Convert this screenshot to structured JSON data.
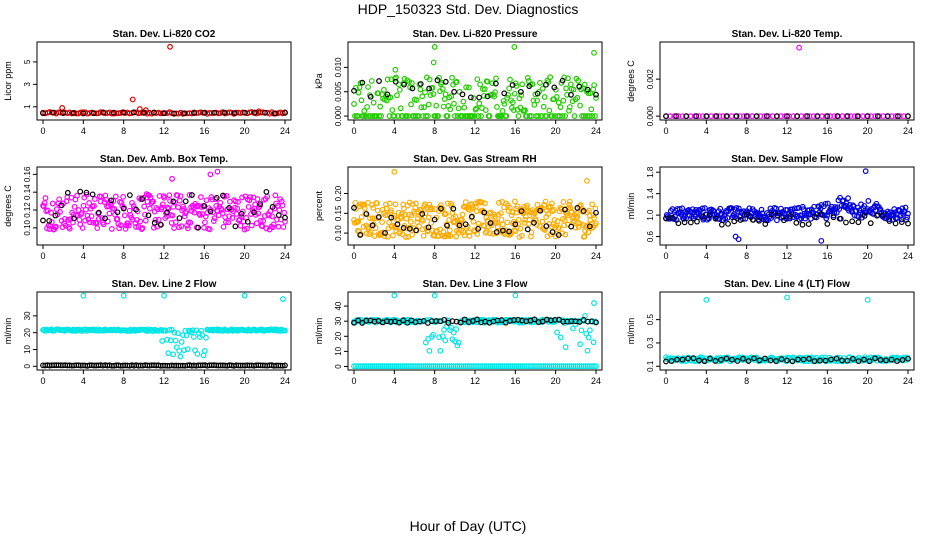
{
  "page": {
    "title": "HDP_150323  Std. Dev. Diagnostics",
    "xlabel": "Hour of Day (UTC)"
  },
  "chart_data": [
    {
      "type": "scatter",
      "title": "Stan. Dev. Li-820 CO2",
      "ylabel": "Licor ppm",
      "xlim": [
        0,
        24
      ],
      "ylim": [
        0,
        6.6
      ],
      "xticks": [
        "0",
        "4",
        "8",
        "12",
        "16",
        "20",
        "24"
      ],
      "yticks": [
        {
          "v": 1,
          "t": "1"
        },
        {
          "v": 3,
          "t": "3"
        },
        {
          "v": 5,
          "t": "5"
        }
      ],
      "color": "#d40000",
      "pattern": {
        "base": 0.45,
        "spread": 0.08,
        "n": 110
      },
      "outliers": [
        {
          "x": 12.6,
          "y": 6.35
        },
        {
          "x": 1.9,
          "y": 0.9
        },
        {
          "x": 8.9,
          "y": 1.65
        },
        {
          "x": 9.6,
          "y": 0.8
        },
        {
          "x": 10.2,
          "y": 0.7
        },
        {
          "x": 21.4,
          "y": 0.6
        }
      ],
      "black": {
        "base": 0.45,
        "spread": 0.05,
        "n": 25
      }
    },
    {
      "type": "scatter",
      "title": "Stan. Dev. Li-820 Pressure",
      "ylabel": "kPa",
      "xlim": [
        0,
        24
      ],
      "ylim": [
        -0.0004,
        0.0148
      ],
      "xticks": [
        "0",
        "4",
        "8",
        "12",
        "16",
        "20",
        "24"
      ],
      "yticks": [
        {
          "v": 0,
          "t": "0.000"
        },
        {
          "v": 0.005,
          "t": "0.005"
        },
        {
          "v": 0.01,
          "t": "0.010"
        }
      ],
      "color": "#22cc00",
      "pattern": {
        "base": 0.0045,
        "spread": 0.0035,
        "n": 260,
        "zeroFrac": 0.35
      },
      "outliers": [
        {
          "x": 8.0,
          "y": 0.0142
        },
        {
          "x": 15.9,
          "y": 0.0142
        },
        {
          "x": 23.8,
          "y": 0.013
        },
        {
          "x": 4.1,
          "y": 0.0095
        },
        {
          "x": 7.9,
          "y": 0.011
        }
      ],
      "black": {
        "base": 0.0055,
        "spread": 0.002,
        "n": 30
      }
    },
    {
      "type": "scatter",
      "title": "Stan. Dev. Li-820 Temp.",
      "ylabel": "degrees C",
      "xlim": [
        0,
        24
      ],
      "ylim": [
        -0.0001,
        0.0039
      ],
      "xticks": [
        "0",
        "4",
        "8",
        "12",
        "16",
        "20",
        "24"
      ],
      "yticks": [
        {
          "v": 0,
          "t": "0.000"
        },
        {
          "v": 0.002,
          "t": "0.002"
        }
      ],
      "color": "#ff00ff",
      "pattern": {
        "base": 0.0,
        "spread": 0.0,
        "n": 60
      },
      "outliers": [
        {
          "x": 13.2,
          "y": 0.0037
        }
      ],
      "black": {
        "base": 0.0,
        "spread": 0.0,
        "n": 25
      }
    },
    {
      "type": "scatter",
      "title": "Stan. Dev. Amb. Box Temp.",
      "ylabel": "degrees C",
      "xlim": [
        0,
        24
      ],
      "ylim": [
        0.083,
        0.166
      ],
      "xticks": [
        "0",
        "4",
        "8",
        "12",
        "16",
        "20",
        "24"
      ],
      "yticks": [
        {
          "v": 0.1,
          "t": "0.10"
        },
        {
          "v": 0.12,
          "t": "0.12"
        },
        {
          "v": 0.14,
          "t": "0.14"
        },
        {
          "v": 0.16,
          "t": "0.16"
        }
      ],
      "color": "#ff00ff",
      "pattern": {
        "base": 0.118,
        "spread": 0.02,
        "n": 300
      },
      "outliers": [
        {
          "x": 17.3,
          "y": 0.163
        },
        {
          "x": 16.6,
          "y": 0.16
        },
        {
          "x": 12.8,
          "y": 0.155
        }
      ],
      "black": {
        "base": 0.12,
        "spread": 0.022,
        "n": 40
      }
    },
    {
      "type": "scatter",
      "title": "Stan. Dev. Gas Stream RH",
      "ylabel": "percent",
      "xlim": [
        0,
        24
      ],
      "ylim": [
        0.075,
        0.262
      ],
      "xticks": [
        "0",
        "4",
        "8",
        "12",
        "16",
        "20",
        "24"
      ],
      "yticks": [
        {
          "v": 0.1,
          "t": "0.10"
        },
        {
          "v": 0.15,
          "t": "0.15"
        },
        {
          "v": 0.2,
          "t": "0.20"
        }
      ],
      "color": "#ffaa00",
      "pattern": {
        "base": 0.135,
        "spread": 0.045,
        "n": 380
      },
      "outliers": [
        {
          "x": 4.0,
          "y": 0.255
        },
        {
          "x": 23.1,
          "y": 0.232
        }
      ],
      "black": {
        "base": 0.13,
        "spread": 0.035,
        "n": 40
      }
    },
    {
      "type": "scatter",
      "title": "Stan. Dev. Sample Flow",
      "ylabel": "ml/min",
      "xlim": [
        0,
        24
      ],
      "ylim": [
        0.48,
        1.86
      ],
      "xticks": [
        "0",
        "4",
        "8",
        "12",
        "16",
        "20",
        "24"
      ],
      "yticks": [
        {
          "v": 0.6,
          "t": "0.6"
        },
        {
          "v": 1.0,
          "t": "1.0"
        },
        {
          "v": 1.4,
          "t": "1.4"
        },
        {
          "v": 1.8,
          "t": "1.8"
        }
      ],
      "color": "#0000dd",
      "pattern": {
        "base": 1.02,
        "spread": 0.12,
        "n": 300,
        "bump": {
          "center": 18,
          "width": 3,
          "amp": 0.25
        }
      },
      "outliers": [
        {
          "x": 19.8,
          "y": 1.82
        },
        {
          "x": 15.4,
          "y": 0.52
        },
        {
          "x": 7.2,
          "y": 0.55
        },
        {
          "x": 6.9,
          "y": 0.6
        }
      ],
      "black": {
        "base": 0.92,
        "spread": 0.1,
        "n": 40
      }
    },
    {
      "type": "scatter",
      "title": "Stan. Dev. Line 2 Flow",
      "ylabel": "ml/min",
      "xlim": [
        0,
        24
      ],
      "ylim": [
        -1,
        43
      ],
      "xticks": [
        "0",
        "4",
        "8",
        "12",
        "16",
        "20",
        "24"
      ],
      "yticks": [
        {
          "v": 0,
          "t": "0"
        },
        {
          "v": 10,
          "t": "10"
        },
        {
          "v": 20,
          "t": "20"
        },
        {
          "v": 30,
          "t": "30"
        }
      ],
      "color": "#00e5e5",
      "pattern": {
        "base": 21.5,
        "spread": 0.5,
        "n": 200,
        "dip": {
          "from": 11.8,
          "to": 16.2,
          "low": 5,
          "high": 22
        }
      },
      "outliers": [
        {
          "x": 4.0,
          "y": 42
        },
        {
          "x": 8.0,
          "y": 42
        },
        {
          "x": 12.0,
          "y": 42
        },
        {
          "x": 20.0,
          "y": 42
        },
        {
          "x": 23.8,
          "y": 40
        }
      ],
      "black": {
        "base": 0.5,
        "spread": 0.2,
        "n": 110,
        "flat": true
      }
    },
    {
      "type": "scatter",
      "title": "Stan. Dev. Line 3 Flow",
      "ylabel": "ml/min",
      "xlim": [
        0,
        24
      ],
      "ylim": [
        -1,
        48
      ],
      "xticks": [
        "0",
        "4",
        "8",
        "12",
        "16",
        "20",
        "24"
      ],
      "yticks": [
        {
          "v": 0,
          "t": "0"
        },
        {
          "v": 10,
          "t": "10"
        },
        {
          "v": 20,
          "t": "20"
        },
        {
          "v": 30,
          "t": "30"
        },
        {
          "v": 40,
          "t": "40"
        }
      ],
      "color": "#00e5e5",
      "pattern": {
        "base": 30,
        "spread": 1.0,
        "n": 200,
        "dip": {
          "from": 7.0,
          "to": 10.5,
          "low": 10,
          "high": 31
        },
        "dip2": {
          "from": 19.5,
          "to": 24,
          "low": 10,
          "high": 34
        }
      },
      "outliers": [
        {
          "x": 4.0,
          "y": 47
        },
        {
          "x": 8.0,
          "y": 47
        },
        {
          "x": 16.0,
          "y": 47
        },
        {
          "x": 23.8,
          "y": 42
        }
      ],
      "black": {
        "base": 30,
        "spread": 1.2,
        "n": 60
      },
      "zeroline": true
    },
    {
      "type": "scatter",
      "title": "Stan. Dev. Line 4 (LT) Flow",
      "ylabel": "ml/min",
      "xlim": [
        0,
        24
      ],
      "ylim": [
        0.085,
        0.72
      ],
      "xticks": [
        "0",
        "4",
        "8",
        "12",
        "16",
        "20",
        "24"
      ],
      "yticks": [
        {
          "v": 0.1,
          "t": "0.1"
        },
        {
          "v": 0.3,
          "t": "0.3"
        },
        {
          "v": 0.5,
          "t": "0.5"
        }
      ],
      "color": "#00e5e5",
      "pattern": {
        "base": 0.16,
        "spread": 0.018,
        "n": 220
      },
      "outliers": [
        {
          "x": 4.0,
          "y": 0.67
        },
        {
          "x": 12.0,
          "y": 0.69
        },
        {
          "x": 20.0,
          "y": 0.67
        }
      ],
      "black": {
        "base": 0.155,
        "spread": 0.015,
        "n": 45
      }
    }
  ]
}
